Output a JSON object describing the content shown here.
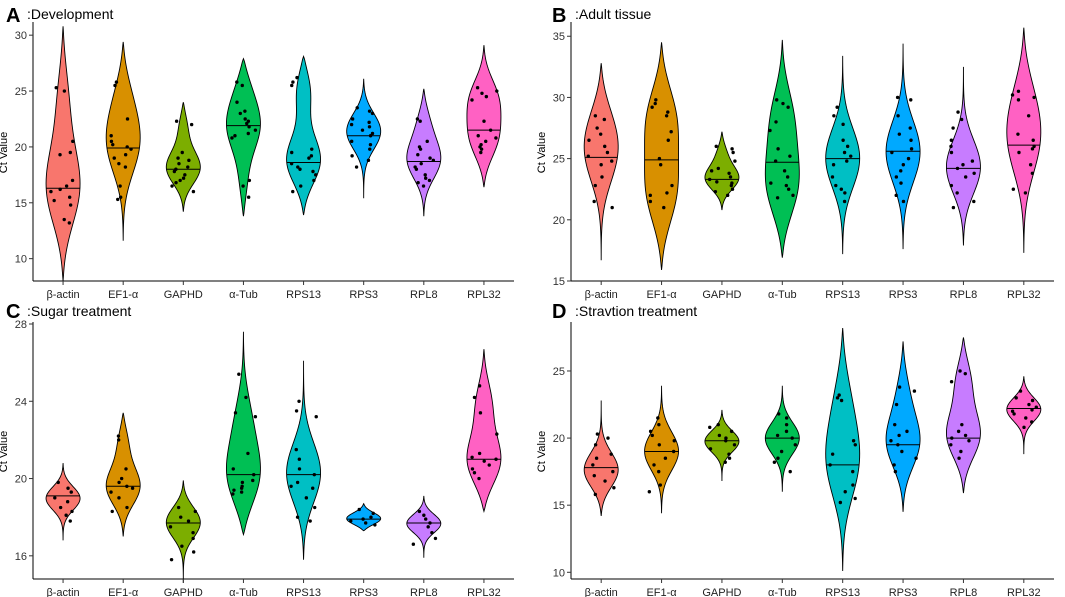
{
  "colors": {
    "β-actin": "#F8766D",
    "EF1-α": "#D89000",
    "GAPHD": "#7CAE00",
    "α-Tub": "#00BF54",
    "RPS13": "#00BFC4",
    "RPS3": "#00A9FF",
    "RPL8": "#C77CFF",
    "RPL32": "#FF61C3"
  },
  "chart_data": [
    {
      "type": "violin",
      "letter": "A",
      "title": ":Development",
      "xlabel": "",
      "ylabel": "Ct Value",
      "ylim": [
        8,
        31
      ],
      "yticks": [
        10,
        15,
        20,
        25,
        30
      ],
      "categories": [
        "β-actin",
        "EF1-α",
        "GAPHD",
        "α-Tub",
        "RPS13",
        "RPS3",
        "RPL8",
        "RPL32"
      ],
      "series": [
        {
          "name": "β-actin",
          "min": 8.0,
          "max": 30.8,
          "median": 16.3,
          "modes": [
            [
              16,
              1.0
            ],
            [
              24.5,
              0.35
            ]
          ],
          "points": [
            25.3,
            25,
            20.5,
            19.5,
            19.3,
            17,
            16.5,
            16.2,
            16,
            15.5,
            15.2,
            14.8,
            13.5,
            13.2
          ]
        },
        {
          "name": "EF1-α",
          "min": 11.6,
          "max": 29.4,
          "median": 19.9,
          "modes": [
            [
              20,
              1.0
            ],
            [
              24.5,
              0.55
            ]
          ],
          "points": [
            25.8,
            25.5,
            22.5,
            21,
            20.5,
            20.2,
            20,
            19.8,
            19.3,
            19,
            18.5,
            18.2,
            16.5,
            15.5,
            15.3
          ]
        },
        {
          "name": "GAPHD",
          "min": 14.2,
          "max": 24.0,
          "median": 18.0,
          "modes": [
            [
              18,
              1.0
            ],
            [
              22,
              0.3
            ]
          ],
          "points": [
            22.3,
            22,
            19.5,
            19,
            18.8,
            18.5,
            18.2,
            18,
            17.8,
            17.5,
            17.2,
            17,
            16.8,
            16.5,
            16
          ]
        },
        {
          "name": "α-Tub",
          "min": 13.8,
          "max": 27.9,
          "median": 21.9,
          "modes": [
            [
              21.8,
              1.0
            ],
            [
              25.5,
              0.55
            ],
            [
              16.5,
              0.3
            ]
          ],
          "points": [
            25.8,
            25.5,
            24,
            23.2,
            23,
            22.5,
            22.3,
            22.1,
            21.8,
            21.5,
            21.2,
            21,
            20.8,
            17,
            16.5,
            15.5
          ]
        },
        {
          "name": "RPS13",
          "min": 13.9,
          "max": 28.1,
          "median": 18.6,
          "modes": [
            [
              18.5,
              1.0
            ],
            [
              25.5,
              0.5
            ]
          ],
          "points": [
            26.2,
            25.8,
            25.5,
            19.8,
            19.5,
            19.2,
            19,
            18.5,
            18.2,
            18,
            17.8,
            17.5,
            17,
            16.5,
            16
          ]
        },
        {
          "name": "RPS3",
          "min": 15.4,
          "max": 26.1,
          "median": 21.0,
          "modes": [
            [
              21.5,
              1.0
            ]
          ],
          "points": [
            23.5,
            23.2,
            23,
            22.5,
            22.2,
            22,
            21.8,
            21.5,
            21.2,
            21,
            20.5,
            20.2,
            19.8,
            19.2,
            18.8,
            18.2
          ]
        },
        {
          "name": "RPL8",
          "min": 13.8,
          "max": 25.2,
          "median": 18.7,
          "modes": [
            [
              18.7,
              1.0
            ],
            [
              22.3,
              0.4
            ]
          ],
          "points": [
            22.5,
            22.3,
            20.5,
            20,
            19.8,
            19.3,
            19,
            18.8,
            18.5,
            18.2,
            18,
            17.5,
            17.2,
            17,
            16.8,
            16.5
          ]
        },
        {
          "name": "RPL32",
          "min": 16.4,
          "max": 29.1,
          "median": 21.5,
          "modes": [
            [
              20.5,
              0.9
            ],
            [
              24.5,
              0.9
            ]
          ],
          "points": [
            25.3,
            25,
            24.8,
            24.5,
            24.2,
            22.3,
            21.5,
            21,
            20.8,
            20.5,
            20.2,
            20,
            19.8,
            19.5
          ]
        }
      ]
    },
    {
      "type": "violin",
      "letter": "B",
      "title": ":Adult tissue",
      "xlabel": "",
      "ylabel": "Ct Value",
      "ylim": [
        15,
        36
      ],
      "yticks": [
        15,
        20,
        25,
        30,
        35
      ],
      "categories": [
        "β-actin",
        "EF1-α",
        "GAPHD",
        "α-Tub",
        "RPS13",
        "RPS3",
        "RPL8",
        "RPL32"
      ],
      "series": [
        {
          "name": "β-actin",
          "min": 16.7,
          "max": 32.8,
          "median": 25.1,
          "modes": [
            [
              25,
              1.0
            ],
            [
              28,
              0.8
            ]
          ],
          "points": [
            28.5,
            28.2,
            27.5,
            27,
            26.5,
            26,
            25.5,
            25.2,
            24.8,
            24.5,
            23.5,
            22.8,
            21.5,
            21
          ]
        },
        {
          "name": "EF1-α",
          "min": 15.9,
          "max": 34.5,
          "median": 24.9,
          "modes": [
            [
              22,
              0.7
            ],
            [
              28.5,
              0.7
            ]
          ],
          "points": [
            29.8,
            29.5,
            29.2,
            28.8,
            28.5,
            27.2,
            26.5,
            25,
            24.5,
            22.8,
            22.2,
            22,
            21.5,
            21
          ]
        },
        {
          "name": "GAPHD",
          "min": 20.8,
          "max": 27.2,
          "median": 23.3,
          "modes": [
            [
              23.3,
              1.0
            ],
            [
              25.5,
              0.3
            ]
          ],
          "points": [
            26,
            25.8,
            25.5,
            24.8,
            24.2,
            24,
            23.8,
            23.5,
            23.3,
            23.1,
            23,
            22.8,
            22.5,
            22.3,
            22
          ]
        },
        {
          "name": "α-Tub",
          "min": 16.9,
          "max": 34.7,
          "median": 24.7,
          "modes": [
            [
              22.5,
              0.8
            ],
            [
              28.5,
              0.55
            ]
          ],
          "points": [
            29.8,
            29.5,
            29.2,
            28,
            27.3,
            25.8,
            25.2,
            24.8,
            24,
            23.5,
            23,
            22.8,
            22.5,
            22,
            21.8
          ]
        },
        {
          "name": "RPS13",
          "min": 17.2,
          "max": 33.4,
          "median": 25.0,
          "modes": [
            [
              25,
              1.0
            ]
          ],
          "points": [
            29.2,
            28.5,
            27.8,
            26.5,
            26,
            25.5,
            25.2,
            24.8,
            24.5,
            23.5,
            22.8,
            22.5,
            22.2,
            21.5
          ]
        },
        {
          "name": "RPS3",
          "min": 17.6,
          "max": 34.4,
          "median": 25.6,
          "modes": [
            [
              25.5,
              1.0
            ]
          ],
          "points": [
            30,
            29.8,
            28.5,
            27.5,
            27,
            26.5,
            25.8,
            25.5,
            25,
            24.5,
            24,
            23.5,
            23,
            22,
            21.5
          ]
        },
        {
          "name": "RPL8",
          "min": 17.9,
          "max": 32.5,
          "median": 24.2,
          "modes": [
            [
              24.2,
              1.0
            ]
          ],
          "points": [
            28.8,
            28.2,
            27.5,
            26.5,
            26,
            25.5,
            24.8,
            24.5,
            24.2,
            23.8,
            23.5,
            22.8,
            22.2,
            21.5,
            21
          ]
        },
        {
          "name": "RPL32",
          "min": 17.3,
          "max": 35.7,
          "median": 26.1,
          "modes": [
            [
              26,
              1.0
            ],
            [
              30,
              0.7
            ]
          ],
          "points": [
            30.5,
            30.2,
            30,
            29.8,
            28.5,
            27,
            26.5,
            26,
            25.8,
            25.5,
            24.5,
            23.8,
            22.5,
            22.2
          ]
        }
      ]
    },
    {
      "type": "violin",
      "letter": "C",
      "title": ":Sugar treatment",
      "xlabel": "",
      "ylabel": "Ct Value",
      "ylim": [
        14.8,
        28
      ],
      "yticks": [
        16,
        20,
        24,
        28
      ],
      "categories": [
        "β-actin",
        "EF1-α",
        "GAPHD",
        "α-Tub",
        "RPS13",
        "RPS3",
        "RPL8",
        "RPL32"
      ],
      "series": [
        {
          "name": "β-actin",
          "min": 16.8,
          "max": 20.8,
          "median": 19.1,
          "modes": [
            [
              19,
              1.0
            ]
          ],
          "points": [
            19.8,
            19.5,
            19.3,
            19,
            18.8,
            18.5,
            18.3,
            18.1,
            17.8
          ]
        },
        {
          "name": "EF1-α",
          "min": 17.0,
          "max": 23.4,
          "median": 19.6,
          "modes": [
            [
              19.5,
              1.0
            ],
            [
              22,
              0.35
            ]
          ],
          "points": [
            22.2,
            22,
            20.5,
            20,
            19.8,
            19.6,
            19.5,
            19.3,
            19,
            18.5,
            18.3
          ]
        },
        {
          "name": "GAPHD",
          "min": 14.6,
          "max": 19.9,
          "median": 17.7,
          "modes": [
            [
              17.8,
              1.0
            ]
          ],
          "points": [
            18.5,
            18.3,
            18,
            17.8,
            17.5,
            17.2,
            16.9,
            16.5,
            16.2,
            15.8
          ]
        },
        {
          "name": "α-Tub",
          "min": 17.1,
          "max": 27.6,
          "median": 20.2,
          "modes": [
            [
              19.8,
              1.0
            ],
            [
              23,
              0.4
            ]
          ],
          "points": [
            25.4,
            24.2,
            23.4,
            23.2,
            21.3,
            20.5,
            20.2,
            19.9,
            19.8,
            19.6,
            19.5,
            19.4,
            19.3,
            19.2
          ]
        },
        {
          "name": "RPS13",
          "min": 15.8,
          "max": 26.1,
          "median": 20.2,
          "modes": [
            [
              20.2,
              1.0
            ]
          ],
          "points": [
            24,
            23.5,
            23.2,
            21.5,
            21,
            20.5,
            20.2,
            19.8,
            19.6,
            19.5,
            19,
            18.5,
            18,
            17.8
          ]
        },
        {
          "name": "RPS3",
          "min": 17.3,
          "max": 18.7,
          "median": 17.9,
          "modes": [
            [
              17.9,
              1.0
            ]
          ],
          "points": [
            18.4,
            18.2,
            18,
            17.9,
            17.8,
            17.7,
            17.6
          ]
        },
        {
          "name": "RPL8",
          "min": 15.9,
          "max": 19.1,
          "median": 17.7,
          "modes": [
            [
              17.7,
              1.0
            ]
          ],
          "points": [
            18.3,
            18.1,
            17.9,
            17.7,
            17.5,
            17.2,
            16.9,
            16.6
          ]
        },
        {
          "name": "RPL32",
          "min": 18.3,
          "max": 26.7,
          "median": 21.0,
          "modes": [
            [
              20.7,
              1.0
            ],
            [
              24,
              0.45
            ]
          ],
          "points": [
            24.8,
            24.2,
            23.4,
            22.3,
            21.3,
            21.1,
            21,
            20.9,
            20.7,
            20.5,
            20.3,
            20
          ]
        }
      ]
    },
    {
      "type": "violin",
      "letter": "D",
      "title": ":Stravtion treatment",
      "xlabel": "",
      "ylabel": "Ct Value",
      "ylim": [
        9.5,
        28.5
      ],
      "yticks": [
        10,
        15,
        20,
        25
      ],
      "categories": [
        "β-actin",
        "EF1-α",
        "GAPHD",
        "α-Tub",
        "RPS13",
        "RPS3",
        "RPL8",
        "RPL32"
      ],
      "series": [
        {
          "name": "β-actin",
          "min": 14.2,
          "max": 22.8,
          "median": 17.8,
          "modes": [
            [
              17.5,
              1.0
            ]
          ],
          "points": [
            20.3,
            20,
            19.5,
            18.8,
            18.5,
            18,
            17.5,
            17.2,
            16.8,
            16.3,
            15.8
          ]
        },
        {
          "name": "EF1-α",
          "min": 14.4,
          "max": 23.9,
          "median": 19.0,
          "modes": [
            [
              19,
              1.0
            ]
          ],
          "points": [
            21.5,
            21,
            20.5,
            20.2,
            19.8,
            19.5,
            19,
            18.5,
            18,
            17.5,
            16.5,
            16
          ]
        },
        {
          "name": "GAPHD",
          "min": 16.8,
          "max": 22.1,
          "median": 19.8,
          "modes": [
            [
              19.8,
              1.0
            ]
          ],
          "points": [
            21,
            20.8,
            20.5,
            20.2,
            20,
            19.8,
            19.5,
            19.2,
            18.8,
            18.5,
            18.2
          ]
        },
        {
          "name": "α-Tub",
          "min": 16.0,
          "max": 23.9,
          "median": 20.0,
          "modes": [
            [
              20,
              1.0
            ]
          ],
          "points": [
            21.8,
            21.5,
            21,
            20.5,
            20.2,
            20,
            19.5,
            19,
            18.5,
            18.2,
            17.5
          ]
        },
        {
          "name": "RPS13",
          "min": 10.1,
          "max": 28.2,
          "median": 18.0,
          "modes": [
            [
              18,
              0.8
            ],
            [
              23,
              0.4
            ]
          ],
          "points": [
            23.2,
            23,
            22.8,
            19.8,
            19.5,
            18.8,
            18,
            17.5,
            16.5,
            16,
            15.5,
            15.2
          ]
        },
        {
          "name": "RPS3",
          "min": 14.5,
          "max": 27.2,
          "median": 19.5,
          "modes": [
            [
              19.5,
              1.0
            ],
            [
              23.5,
              0.35
            ]
          ],
          "points": [
            23.8,
            23.5,
            22.5,
            21,
            20.5,
            20.2,
            19.8,
            19.5,
            19,
            18.5,
            18,
            17.5
          ]
        },
        {
          "name": "RPL8",
          "min": 15.9,
          "max": 27.5,
          "median": 20.0,
          "modes": [
            [
              20,
              1.0
            ],
            [
              24.5,
              0.5
            ]
          ],
          "points": [
            25,
            24.8,
            24.2,
            21,
            20.5,
            20.2,
            20,
            19.8,
            19.5,
            19,
            18.5
          ]
        },
        {
          "name": "RPL32",
          "min": 18.8,
          "max": 24.6,
          "median": 22.2,
          "modes": [
            [
              22.2,
              1.0
            ]
          ],
          "points": [
            23.5,
            23,
            22.8,
            22.5,
            22.3,
            22.1,
            22,
            21.8,
            21.5,
            21.2,
            20.8
          ]
        }
      ]
    }
  ]
}
